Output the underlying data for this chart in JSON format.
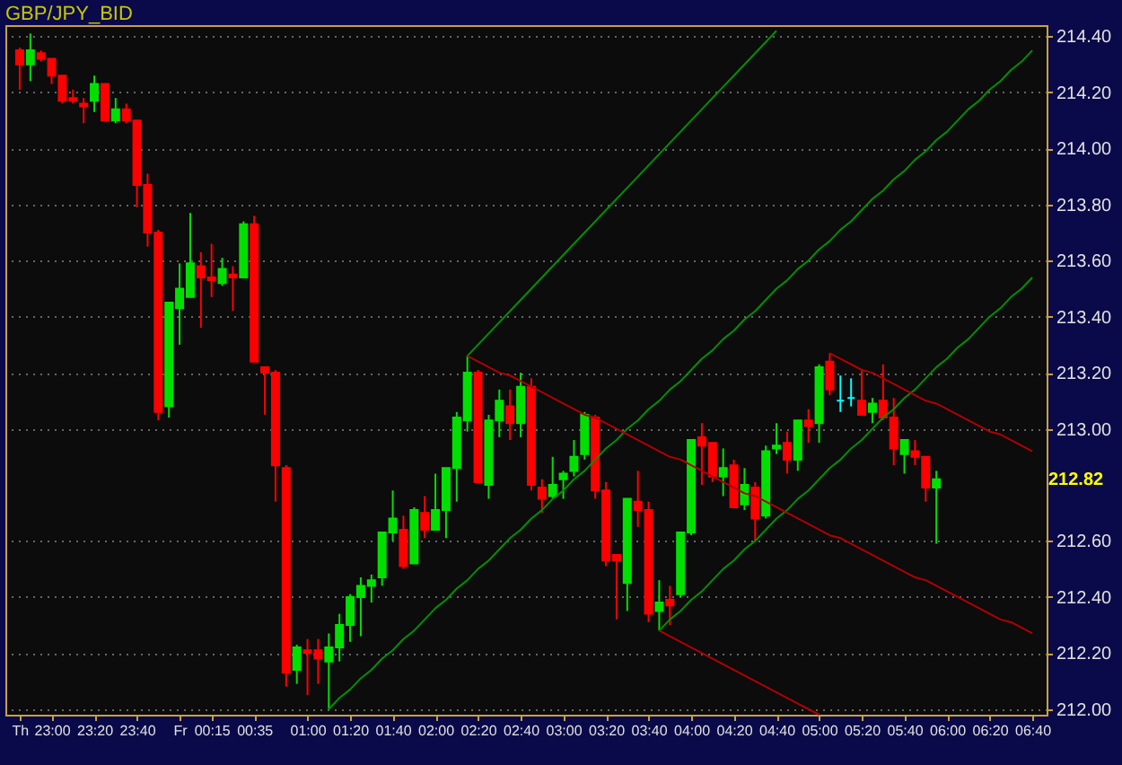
{
  "chart_data": {
    "type": "candlestick",
    "title": "GBP/JPY_BID",
    "categories": [
      "Th",
      null,
      null,
      "23:00",
      null,
      null,
      null,
      "23:20",
      null,
      null,
      null,
      "23:40",
      null,
      null,
      null,
      "Fr",
      null,
      null,
      "00:15",
      null,
      null,
      null,
      "00:35",
      null,
      null,
      null,
      null,
      "01:00",
      null,
      null,
      null,
      "01:20",
      null,
      null,
      null,
      "01:40",
      null,
      null,
      null,
      "02:00",
      null,
      null,
      null,
      "02:20",
      null,
      null,
      null,
      "02:40",
      null,
      null,
      null,
      "03:00",
      null,
      null,
      null,
      "03:20",
      null,
      null,
      null,
      "03:40",
      null,
      null,
      null,
      "04:00",
      null,
      null,
      null,
      "04:20",
      null,
      null,
      null,
      "04:40",
      null,
      null,
      null,
      "05:00",
      null,
      null,
      null,
      "05:20",
      null,
      null,
      null,
      "05:40",
      null,
      null,
      null,
      "06:00",
      null,
      null,
      null,
      "06:20",
      null,
      null,
      null,
      "06:40"
    ],
    "ohlc": [
      [
        214.35,
        214.36,
        214.21,
        214.3
      ],
      [
        214.3,
        214.41,
        214.24,
        214.35
      ],
      [
        214.34,
        214.35,
        214.31,
        214.32
      ],
      [
        214.32,
        214.32,
        214.23,
        214.26
      ],
      [
        214.26,
        214.26,
        214.16,
        214.17
      ],
      [
        214.18,
        214.21,
        214.16,
        214.17
      ],
      [
        214.16,
        214.18,
        214.09,
        214.15
      ],
      [
        214.17,
        214.26,
        214.13,
        214.23
      ],
      [
        214.23,
        214.23,
        214.1,
        214.1
      ],
      [
        214.1,
        214.18,
        214.09,
        214.14
      ],
      [
        214.14,
        214.16,
        214.09,
        214.1
      ],
      [
        214.1,
        214.1,
        213.79,
        213.87
      ],
      [
        213.87,
        213.91,
        213.65,
        213.7
      ],
      [
        213.7,
        213.71,
        213.03,
        213.06
      ],
      [
        213.08,
        213.45,
        213.04,
        213.45
      ],
      [
        213.43,
        213.59,
        213.3,
        213.5
      ],
      [
        213.47,
        213.77,
        213.47,
        213.59
      ],
      [
        213.58,
        213.63,
        213.36,
        213.54
      ],
      [
        213.54,
        213.66,
        213.47,
        213.53
      ],
      [
        213.52,
        213.61,
        213.51,
        213.57
      ],
      [
        213.55,
        213.58,
        213.42,
        213.54
      ],
      [
        213.54,
        213.74,
        213.54,
        213.73
      ],
      [
        213.73,
        213.76,
        213.24,
        213.24
      ],
      [
        213.22,
        213.22,
        213.05,
        213.2
      ],
      [
        213.2,
        213.21,
        212.74,
        212.87
      ],
      [
        212.86,
        212.87,
        212.08,
        212.13
      ],
      [
        212.14,
        212.23,
        212.09,
        212.22
      ],
      [
        212.21,
        212.25,
        212.05,
        212.2
      ],
      [
        212.21,
        212.25,
        212.09,
        212.18
      ],
      [
        212.17,
        212.27,
        212.0,
        212.22
      ],
      [
        212.22,
        212.34,
        212.17,
        212.3
      ],
      [
        212.3,
        212.41,
        212.24,
        212.4
      ],
      [
        212.4,
        212.47,
        212.26,
        212.44
      ],
      [
        212.44,
        212.48,
        212.38,
        212.46
      ],
      [
        212.47,
        212.63,
        212.44,
        212.63
      ],
      [
        212.63,
        212.78,
        212.6,
        212.68
      ],
      [
        212.64,
        212.69,
        212.5,
        212.51
      ],
      [
        212.52,
        212.72,
        212.52,
        212.71
      ],
      [
        212.7,
        212.76,
        212.61,
        212.64
      ],
      [
        212.64,
        212.84,
        212.64,
        212.71
      ],
      [
        212.71,
        212.86,
        212.61,
        212.86
      ],
      [
        212.86,
        213.06,
        212.74,
        213.04
      ],
      [
        213.03,
        213.26,
        212.99,
        213.2
      ],
      [
        213.2,
        213.21,
        212.81,
        212.81
      ],
      [
        212.8,
        213.05,
        212.75,
        213.03
      ],
      [
        213.03,
        213.14,
        212.97,
        213.1
      ],
      [
        213.08,
        213.14,
        212.96,
        213.02
      ],
      [
        213.02,
        213.2,
        212.97,
        213.15
      ],
      [
        213.15,
        213.18,
        212.78,
        212.8
      ],
      [
        212.79,
        212.82,
        212.7,
        212.75
      ],
      [
        212.76,
        212.9,
        212.75,
        212.8
      ],
      [
        212.82,
        212.85,
        212.75,
        212.84
      ],
      [
        212.85,
        212.96,
        212.83,
        212.9
      ],
      [
        212.91,
        213.06,
        212.89,
        213.05
      ],
      [
        213.04,
        213.05,
        212.75,
        212.78
      ],
      [
        212.78,
        212.81,
        212.51,
        212.53
      ],
      [
        212.55,
        212.55,
        212.32,
        212.53
      ],
      [
        212.45,
        212.75,
        212.35,
        212.75
      ],
      [
        212.74,
        212.85,
        212.65,
        212.71
      ],
      [
        212.71,
        212.74,
        212.31,
        212.34
      ],
      [
        212.35,
        212.46,
        212.28,
        212.38
      ],
      [
        212.39,
        212.44,
        212.3,
        212.37
      ],
      [
        212.41,
        212.63,
        212.4,
        212.63
      ],
      [
        212.63,
        212.96,
        212.62,
        212.96
      ],
      [
        212.97,
        213.02,
        212.8,
        212.94
      ],
      [
        212.95,
        212.95,
        212.81,
        212.83
      ],
      [
        212.83,
        212.93,
        212.76,
        212.86
      ],
      [
        212.87,
        212.89,
        212.72,
        212.72
      ],
      [
        212.73,
        212.86,
        212.71,
        212.8
      ],
      [
        212.79,
        212.81,
        212.6,
        212.68
      ],
      [
        212.69,
        212.94,
        212.68,
        212.92
      ],
      [
        212.93,
        213.02,
        212.91,
        212.94
      ],
      [
        212.95,
        212.99,
        212.84,
        212.89
      ],
      [
        212.89,
        213.03,
        212.85,
        213.03
      ],
      [
        213.03,
        213.07,
        212.95,
        213.01
      ],
      [
        213.02,
        213.23,
        212.95,
        213.22
      ],
      [
        213.24,
        213.27,
        213.12,
        213.14
      ],
      [
        213.1,
        213.19,
        213.06,
        213.1
      ],
      [
        213.11,
        213.18,
        213.08,
        213.11
      ],
      [
        213.1,
        213.21,
        213.05,
        213.05
      ],
      [
        213.06,
        213.11,
        213.02,
        213.09
      ],
      [
        213.1,
        213.23,
        213.03,
        213.04
      ],
      [
        213.04,
        213.11,
        212.87,
        212.93
      ],
      [
        212.91,
        212.96,
        212.84,
        212.96
      ],
      [
        212.92,
        212.96,
        212.87,
        212.9
      ],
      [
        212.9,
        212.9,
        212.74,
        212.79
      ],
      [
        212.79,
        212.85,
        212.59,
        212.82
      ],
      null,
      null,
      null,
      null,
      null,
      null,
      null,
      null,
      null
    ],
    "colors": [
      "#ff0000",
      "#00e000",
      "#ff0000",
      "#ff0000",
      "#ff0000",
      "#ff0000",
      "#ff0000",
      "#00e000",
      "#ff0000",
      "#00e000",
      "#ff0000",
      "#ff0000",
      "#ff0000",
      "#ff0000",
      "#00e000",
      "#00e000",
      "#00e000",
      "#ff0000",
      "#ff0000",
      "#00e000",
      "#ff0000",
      "#00e000",
      "#ff0000",
      "#ff0000",
      "#ff0000",
      "#ff0000",
      "#00e000",
      "#ff0000",
      "#ff0000",
      "#00e000",
      "#00e000",
      "#00e000",
      "#00e000",
      "#00e000",
      "#00e000",
      "#00e000",
      "#ff0000",
      "#00e000",
      "#ff0000",
      "#00e000",
      "#00e000",
      "#00e000",
      "#00e000",
      "#ff0000",
      "#00e000",
      "#00e000",
      "#ff0000",
      "#00e000",
      "#ff0000",
      "#ff0000",
      "#00e000",
      "#00e000",
      "#00e000",
      "#00e000",
      "#ff0000",
      "#ff0000",
      "#ff0000",
      "#00e000",
      "#ff0000",
      "#ff0000",
      "#00e000",
      "#ff0000",
      "#00e000",
      "#00e000",
      "#ff0000",
      "#ff0000",
      "#00e000",
      "#ff0000",
      "#00e000",
      "#ff0000",
      "#00e000",
      "#00e000",
      "#ff0000",
      "#00e000",
      "#ff0000",
      "#00e000",
      "#ff0000",
      "#00ffff",
      "#00ffff",
      "#ff0000",
      "#00e000",
      "#ff0000",
      "#ff0000",
      "#00e000",
      "#ff0000",
      "#ff0000",
      "#00e000",
      null,
      null,
      null,
      null,
      null,
      null,
      null,
      null,
      null
    ],
    "series": [
      {
        "type": "line",
        "color": "#009000",
        "values": [
          null,
          null,
          null,
          null,
          null,
          null,
          null,
          null,
          null,
          null,
          null,
          null,
          null,
          null,
          null,
          null,
          null,
          null,
          null,
          null,
          null,
          null,
          null,
          null,
          null,
          null,
          null,
          null,
          null,
          212.0,
          212.04,
          212.07,
          212.11,
          212.14,
          212.18,
          212.21,
          212.25,
          212.28,
          212.32,
          212.36,
          212.39,
          212.43,
          212.46,
          212.5,
          212.53,
          212.57,
          212.61,
          212.64,
          212.68,
          212.71,
          212.75,
          212.78,
          212.82,
          212.85,
          212.89,
          212.93,
          212.96,
          213.0,
          213.03,
          213.07,
          213.1,
          213.14,
          213.17,
          213.21,
          213.25,
          213.28,
          213.32,
          213.35,
          213.39,
          213.42,
          213.46,
          213.5,
          213.53,
          213.57,
          213.6,
          213.64,
          213.67,
          213.71,
          213.74,
          213.78,
          213.82,
          213.85,
          213.89,
          213.92,
          213.96,
          213.99,
          214.03,
          214.06,
          214.1,
          214.14,
          214.17,
          214.21,
          214.24,
          214.28,
          214.31,
          214.35
        ]
      },
      {
        "type": "line",
        "color": "#009000",
        "values": [
          null,
          null,
          null,
          null,
          null,
          null,
          null,
          null,
          null,
          null,
          null,
          null,
          null,
          null,
          null,
          null,
          null,
          null,
          null,
          null,
          null,
          null,
          null,
          null,
          null,
          null,
          null,
          null,
          null,
          null,
          null,
          null,
          null,
          null,
          null,
          null,
          null,
          null,
          null,
          null,
          null,
          null,
          213.26,
          213.3,
          213.34,
          213.38,
          213.42,
          213.46,
          213.5,
          213.54,
          213.58,
          213.62,
          213.66,
          213.7,
          213.74,
          213.78,
          213.82,
          213.86,
          213.9,
          213.94,
          213.98,
          214.02,
          214.06,
          214.1,
          214.14,
          214.18,
          214.22,
          214.26,
          214.3,
          214.34,
          214.38,
          214.42,
          null,
          null,
          null,
          null,
          null,
          null,
          null,
          null,
          null,
          null,
          null,
          null,
          null,
          null,
          null,
          null,
          null,
          null,
          null,
          null,
          null,
          null,
          null,
          null
        ]
      },
      {
        "type": "line",
        "color": "#009000",
        "values": [
          null,
          null,
          null,
          null,
          null,
          null,
          null,
          null,
          null,
          null,
          null,
          null,
          null,
          null,
          null,
          null,
          null,
          null,
          null,
          null,
          null,
          null,
          null,
          null,
          null,
          null,
          null,
          null,
          null,
          null,
          null,
          null,
          null,
          null,
          null,
          null,
          null,
          null,
          null,
          null,
          null,
          null,
          null,
          null,
          null,
          null,
          null,
          null,
          null,
          null,
          null,
          null,
          null,
          null,
          null,
          null,
          null,
          null,
          null,
          null,
          212.28,
          212.32,
          212.35,
          212.39,
          212.42,
          212.46,
          212.5,
          212.53,
          212.57,
          212.6,
          212.64,
          212.68,
          212.71,
          212.75,
          212.78,
          212.82,
          212.86,
          212.89,
          212.93,
          212.96,
          213.0,
          213.04,
          213.07,
          213.11,
          213.14,
          213.18,
          213.22,
          213.25,
          213.29,
          213.32,
          213.36,
          213.4,
          213.43,
          213.47,
          213.5,
          213.54
        ]
      },
      {
        "type": "line",
        "color": "#b00000",
        "values": [
          null,
          null,
          null,
          null,
          null,
          null,
          null,
          null,
          null,
          null,
          null,
          null,
          null,
          null,
          null,
          null,
          null,
          null,
          null,
          null,
          null,
          null,
          null,
          null,
          null,
          null,
          null,
          null,
          null,
          null,
          null,
          null,
          null,
          null,
          null,
          null,
          null,
          null,
          null,
          null,
          null,
          null,
          213.26,
          213.24,
          213.22,
          213.2,
          213.19,
          213.17,
          213.15,
          213.13,
          213.11,
          213.09,
          213.07,
          213.05,
          213.04,
          213.02,
          213.0,
          212.98,
          212.96,
          212.94,
          212.92,
          212.9,
          212.89,
          212.87,
          212.85,
          212.83,
          212.81,
          212.79,
          212.77,
          212.76,
          212.74,
          212.72,
          212.7,
          212.68,
          212.66,
          212.64,
          212.62,
          212.61,
          212.59,
          212.57,
          212.55,
          212.53,
          212.51,
          212.49,
          212.47,
          212.46,
          212.44,
          212.42,
          212.4,
          212.38,
          212.36,
          212.34,
          212.32,
          212.31,
          212.29,
          212.27
        ]
      },
      {
        "type": "line",
        "color": "#b00000",
        "values": [
          null,
          null,
          null,
          null,
          null,
          null,
          null,
          null,
          null,
          null,
          null,
          null,
          null,
          null,
          null,
          null,
          null,
          null,
          null,
          null,
          null,
          null,
          null,
          null,
          null,
          null,
          null,
          null,
          null,
          null,
          null,
          null,
          null,
          null,
          null,
          null,
          null,
          null,
          null,
          null,
          null,
          null,
          null,
          null,
          null,
          null,
          null,
          null,
          null,
          null,
          null,
          null,
          null,
          null,
          null,
          null,
          null,
          null,
          null,
          null,
          null,
          null,
          null,
          null,
          null,
          null,
          null,
          null,
          null,
          null,
          null,
          null,
          null,
          null,
          null,
          null,
          213.27,
          213.25,
          213.23,
          213.21,
          213.2,
          213.18,
          213.16,
          213.14,
          213.12,
          213.1,
          213.09,
          213.07,
          213.05,
          213.03,
          213.01,
          212.99,
          212.98,
          212.96,
          212.94,
          212.92
        ]
      },
      {
        "type": "line",
        "color": "#b00000",
        "values": [
          null,
          null,
          null,
          null,
          null,
          null,
          null,
          null,
          null,
          null,
          null,
          null,
          null,
          null,
          null,
          null,
          null,
          null,
          null,
          null,
          null,
          null,
          null,
          null,
          null,
          null,
          null,
          null,
          null,
          null,
          null,
          null,
          null,
          null,
          null,
          null,
          null,
          null,
          null,
          null,
          null,
          null,
          null,
          null,
          null,
          null,
          null,
          null,
          null,
          null,
          null,
          null,
          null,
          null,
          null,
          null,
          null,
          null,
          null,
          null,
          212.28,
          212.26,
          212.24,
          212.22,
          212.2,
          212.18,
          212.16,
          212.14,
          212.12,
          212.1,
          212.08,
          212.06,
          212.04,
          212.02,
          212.0,
          211.98,
          null,
          null,
          null,
          null,
          null,
          null,
          null,
          null,
          null,
          null,
          null,
          null,
          null,
          null,
          null,
          null,
          null,
          null,
          null,
          null
        ]
      }
    ],
    "ylim": [
      211.98,
      214.44
    ],
    "yticks": [
      {
        "value": 212.0,
        "label": "212.00"
      },
      {
        "value": 212.2,
        "label": "212.20"
      },
      {
        "value": 212.4,
        "label": "212.40"
      },
      {
        "value": 212.6,
        "label": "212.60"
      },
      {
        "value": 213.0,
        "label": "213.00"
      },
      {
        "value": 213.2,
        "label": "213.20"
      },
      {
        "value": 213.4,
        "label": "213.40"
      },
      {
        "value": 213.6,
        "label": "213.60"
      },
      {
        "value": 213.8,
        "label": "213.80"
      },
      {
        "value": 214.0,
        "label": "214.00"
      },
      {
        "value": 214.2,
        "label": "214.20"
      },
      {
        "value": 214.4,
        "label": "214.40"
      }
    ],
    "grid": "y",
    "annotations": [
      "212.82"
    ]
  }
}
